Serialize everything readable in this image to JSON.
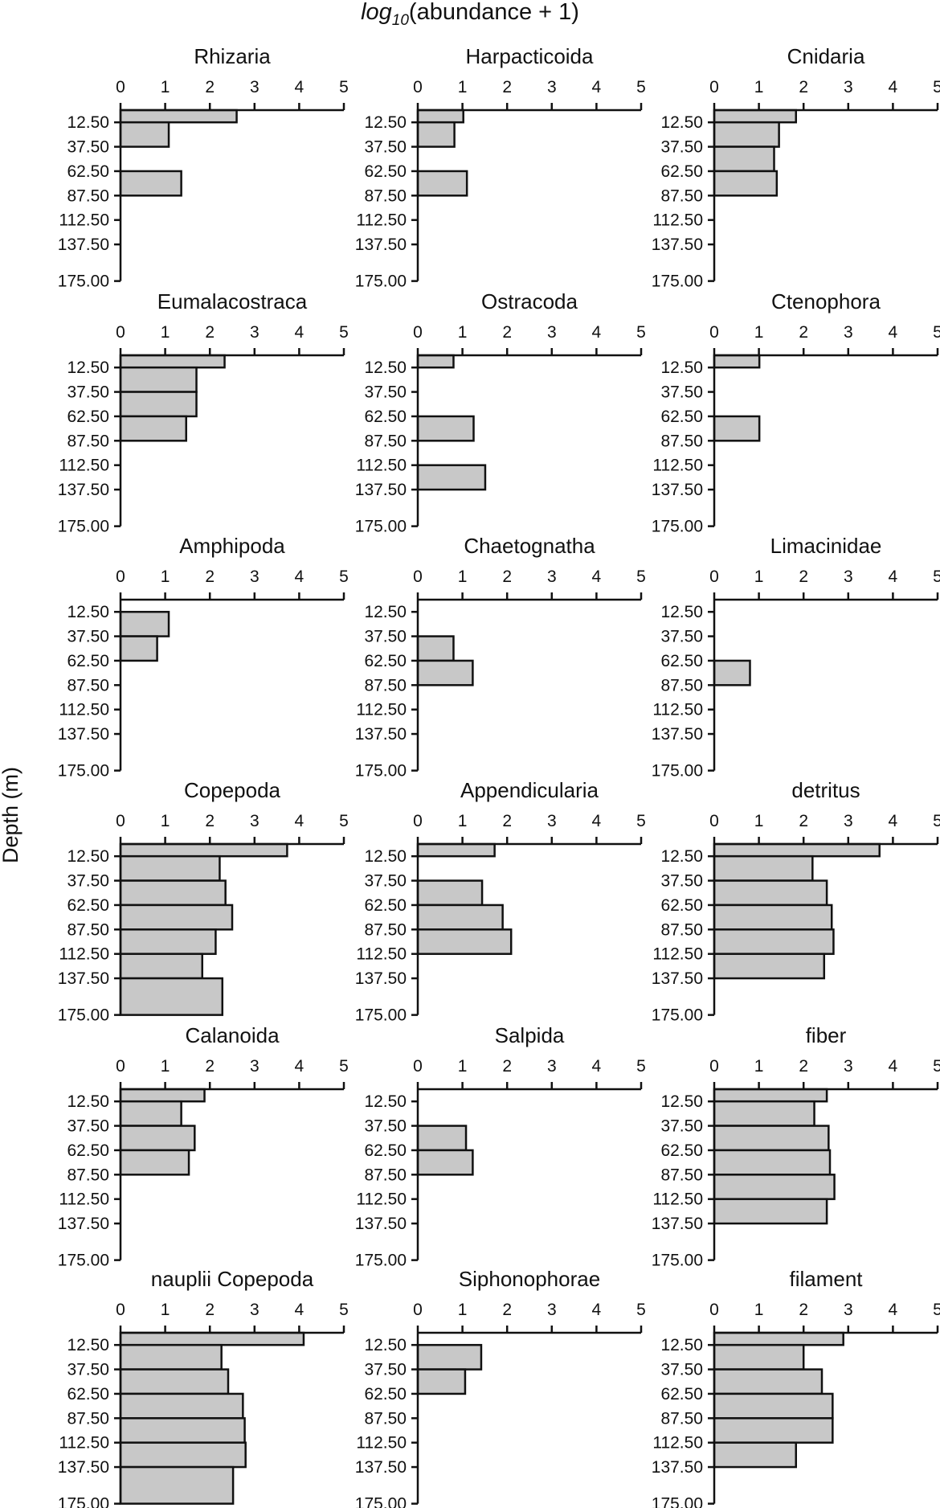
{
  "chart_data": {
    "type": "bar",
    "orientation": "horizontal",
    "xlabel_prefix": "log",
    "xlabel_subscript": "10",
    "xlabel_suffix": "(abundance + 1)",
    "ylabel": "Depth (m)",
    "xlim": [
      0,
      5
    ],
    "x_ticks": [
      "0",
      "1",
      "2",
      "3",
      "4",
      "5"
    ],
    "y_tick_labels": [
      "12.50",
      "37.50",
      "62.50",
      "87.50",
      "112.50",
      "137.50",
      "175.00"
    ],
    "depth_bin_edges": [
      0,
      12.5,
      37.5,
      62.5,
      87.5,
      112.5,
      137.5,
      175
    ],
    "bar_color": "#c8c8c8",
    "grid": false,
    "panels": [
      {
        "title": "Rhizaria",
        "values": [
          2.6,
          1.08,
          null,
          1.36,
          null,
          null,
          null
        ]
      },
      {
        "title": "Harpacticoida",
        "values": [
          1.02,
          0.82,
          null,
          1.1,
          null,
          null,
          null
        ]
      },
      {
        "title": "Cnidaria",
        "values": [
          1.83,
          1.45,
          1.34,
          1.4,
          null,
          null,
          null
        ]
      },
      {
        "title": "Eumalacostraca",
        "values": [
          2.33,
          1.7,
          1.7,
          1.47,
          null,
          null,
          null
        ]
      },
      {
        "title": "Ostracoda",
        "values": [
          0.8,
          null,
          null,
          1.25,
          null,
          1.51,
          null
        ]
      },
      {
        "title": "Ctenophora",
        "values": [
          1.01,
          null,
          null,
          1.01,
          null,
          null,
          null
        ]
      },
      {
        "title": "Amphipoda",
        "values": [
          null,
          1.08,
          0.82,
          null,
          null,
          null,
          null
        ]
      },
      {
        "title": "Chaetognatha",
        "values": [
          null,
          null,
          0.8,
          1.23,
          null,
          null,
          null
        ]
      },
      {
        "title": "Limacinidae",
        "values": [
          null,
          null,
          null,
          0.8,
          null,
          null,
          null
        ]
      },
      {
        "title": "Copepoda",
        "values": [
          3.73,
          2.22,
          2.35,
          2.5,
          2.13,
          1.83,
          2.28
        ]
      },
      {
        "title": "Appendicularia",
        "values": [
          1.72,
          null,
          1.44,
          1.9,
          2.09,
          null,
          null
        ]
      },
      {
        "title": "detritus",
        "values": [
          3.7,
          2.2,
          2.52,
          2.63,
          2.67,
          2.46,
          null
        ]
      },
      {
        "title": "Calanoida",
        "values": [
          1.88,
          1.36,
          1.66,
          1.53,
          null,
          null,
          null
        ]
      },
      {
        "title": "Salpida",
        "values": [
          null,
          null,
          1.08,
          1.23,
          null,
          null,
          null
        ]
      },
      {
        "title": "fiber",
        "values": [
          2.52,
          2.24,
          2.56,
          2.59,
          2.69,
          2.52,
          null
        ]
      },
      {
        "title": "nauplii Copepoda",
        "values": [
          4.1,
          2.26,
          2.41,
          2.74,
          2.78,
          2.8,
          2.52
        ]
      },
      {
        "title": "Siphonophorae",
        "values": [
          null,
          1.42,
          1.06,
          null,
          null,
          null,
          null
        ]
      },
      {
        "title": "filament",
        "values": [
          2.89,
          2.0,
          2.41,
          2.65,
          2.65,
          1.83,
          null
        ]
      }
    ]
  }
}
